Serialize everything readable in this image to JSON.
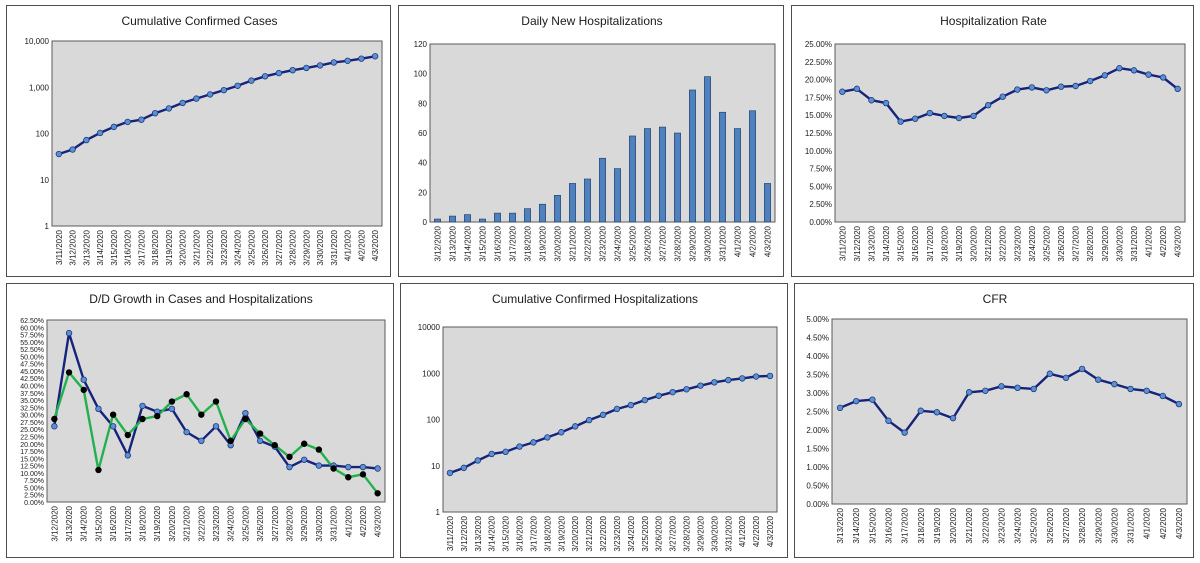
{
  "chart_data": [
    {
      "id": "cases",
      "type": "line",
      "title": "Cumulative Confirmed Cases",
      "yscale": "log",
      "ylim": [
        1,
        10000
      ],
      "yticks": [
        1,
        10,
        100,
        1000,
        10000
      ],
      "ytick_labels": [
        "1",
        "10",
        "100",
        "1,000",
        "10,000"
      ],
      "categories": [
        "3/11/2020",
        "3/12/2020",
        "3/13/2020",
        "3/14/2020",
        "3/15/2020",
        "3/16/2020",
        "3/17/2020",
        "3/18/2020",
        "3/19/2020",
        "3/20/2020",
        "3/21/2020",
        "3/22/2020",
        "3/23/2020",
        "3/24/2020",
        "3/25/2020",
        "3/26/2020",
        "3/27/2020",
        "3/28/2020",
        "3/29/2020",
        "3/30/2020",
        "3/31/2020",
        "4/1/2020",
        "4/2/2020",
        "4/3/2020"
      ],
      "series": [
        {
          "values": [
            36,
            45,
            72,
            103,
            139,
            178,
            199,
            275,
            349,
            458,
            568,
            700,
            866,
            1076,
            1391,
            1728,
            2024,
            2338,
            2615,
            2968,
            3441,
            3738,
            4149,
            4669
          ],
          "color": "#16237a",
          "marker": "#5b8fd6"
        }
      ],
      "grid": false
    },
    {
      "id": "hosp",
      "type": "bar",
      "title": "Daily New Hospitalizations",
      "ylim": [
        0,
        120
      ],
      "yticks": [
        0,
        20,
        40,
        60,
        80,
        100,
        120
      ],
      "categories": [
        "3/12/2020",
        "3/13/2020",
        "3/14/2020",
        "3/15/2020",
        "3/16/2020",
        "3/17/2020",
        "3/18/2020",
        "3/19/2020",
        "3/20/2020",
        "3/21/2020",
        "3/22/2020",
        "3/23/2020",
        "3/24/2020",
        "3/25/2020",
        "3/26/2020",
        "3/27/2020",
        "3/28/2020",
        "3/29/2020",
        "3/30/2020",
        "3/31/2020",
        "4/1/2020",
        "4/2/2020",
        "4/3/2020"
      ],
      "values": [
        2,
        4,
        5,
        2,
        6,
        6,
        9,
        12,
        18,
        26,
        29,
        43,
        36,
        58,
        63,
        64,
        60,
        89,
        98,
        74,
        63,
        75,
        26
      ],
      "color": "#4f81bd",
      "grid": false
    },
    {
      "id": "rate",
      "type": "line",
      "title": "Hospitalization Rate",
      "ylim": [
        0,
        25
      ],
      "yticks": [
        0,
        2.5,
        5,
        7.5,
        10,
        12.5,
        15,
        17.5,
        20,
        22.5,
        25
      ],
      "ytick_labels": [
        "0.00%",
        "2.50%",
        "5.00%",
        "7.50%",
        "10.00%",
        "12.50%",
        "15.00%",
        "17.50%",
        "20.00%",
        "22.50%",
        "25.00%"
      ],
      "categories": [
        "3/11/2020",
        "3/12/2020",
        "3/13/2020",
        "3/14/2020",
        "3/15/2020",
        "3/16/2020",
        "3/17/2020",
        "3/18/2020",
        "3/19/2020",
        "3/20/2020",
        "3/21/2020",
        "3/22/2020",
        "3/23/2020",
        "3/24/2020",
        "3/25/2020",
        "3/26/2020",
        "3/27/2020",
        "3/28/2020",
        "3/29/2020",
        "3/30/2020",
        "3/31/2020",
        "4/1/2020",
        "4/2/2020",
        "4/3/2020"
      ],
      "series": [
        {
          "values": [
            18.3,
            18.7,
            17.1,
            16.7,
            14.1,
            14.5,
            15.3,
            14.9,
            14.6,
            14.9,
            16.4,
            17.6,
            18.6,
            18.9,
            18.5,
            19.0,
            19.1,
            19.8,
            20.6,
            21.6,
            21.3,
            20.7,
            20.3,
            18.7
          ],
          "color": "#16237a",
          "marker": "#5b8fd6"
        }
      ],
      "grid": false
    },
    {
      "id": "growth",
      "type": "line",
      "title": "D/D Growth in Cases and Hospitalizations",
      "ylim": [
        0,
        62.5
      ],
      "yticks": [
        0,
        2.5,
        5,
        7.5,
        10,
        12.5,
        15,
        17.5,
        20,
        22.5,
        25,
        27.5,
        30,
        32.5,
        35,
        37.5,
        40,
        42.5,
        45,
        47.5,
        50,
        52.5,
        55,
        57.5,
        60,
        62.5
      ],
      "ytick_labels": [
        "0.00%",
        "2.50%",
        "5.00%",
        "7.50%",
        "10.00%",
        "12.50%",
        "15.00%",
        "17.50%",
        "20.00%",
        "22.50%",
        "25.00%",
        "27.50%",
        "30.00%",
        "32.50%",
        "35.00%",
        "37.50%",
        "40.00%",
        "42.50%",
        "45.00%",
        "47.50%",
        "50.00%",
        "52.50%",
        "55.00%",
        "57.50%",
        "60.00%",
        "62.50%"
      ],
      "categories": [
        "3/12/2020",
        "3/13/2020",
        "3/14/2020",
        "3/15/2020",
        "3/16/2020",
        "3/17/2020",
        "3/18/2020",
        "3/19/2020",
        "3/20/2020",
        "3/21/2020",
        "3/22/2020",
        "3/23/2020",
        "3/24/2020",
        "3/25/2020",
        "3/26/2020",
        "3/27/2020",
        "3/28/2020",
        "3/29/2020",
        "3/30/2020",
        "3/31/2020",
        "4/1/2020",
        "4/2/2020",
        "4/3/2020"
      ],
      "series": [
        {
          "values": [
            26,
            58,
            42,
            32,
            26,
            16,
            33,
            31,
            32,
            24,
            21,
            26,
            19.5,
            30.5,
            21,
            19,
            12,
            14.5,
            12.5,
            12.5,
            12,
            12,
            11.5
          ],
          "color": "#16237a",
          "marker": "#5b8fd6"
        },
        {
          "values": [
            28.5,
            44.5,
            38.5,
            11,
            30,
            23,
            28.5,
            29.5,
            34.5,
            37,
            30,
            34.5,
            21,
            28.5,
            23.5,
            19.5,
            15.5,
            20,
            18,
            11.5,
            8.5,
            9.5,
            3
          ],
          "color": "#22b14c",
          "marker": "#000000"
        }
      ],
      "grid": false
    },
    {
      "id": "cumhosp",
      "type": "line",
      "title": "Cumulative Confirmed Hospitalizations",
      "yscale": "log",
      "ylim": [
        1,
        10000
      ],
      "yticks": [
        1,
        10,
        100,
        1000,
        10000
      ],
      "ytick_labels": [
        "1",
        "10",
        "100",
        "1000",
        "10000"
      ],
      "categories": [
        "3/11/2020",
        "3/12/2020",
        "3/13/2020",
        "3/14/2020",
        "3/15/2020",
        "3/16/2020",
        "3/17/2020",
        "3/18/2020",
        "3/19/2020",
        "3/20/2020",
        "3/21/2020",
        "3/22/2020",
        "3/23/2020",
        "3/24/2020",
        "3/25/2020",
        "3/26/2020",
        "3/27/2020",
        "3/28/2020",
        "3/29/2020",
        "3/30/2020",
        "3/31/2020",
        "4/1/2020",
        "4/2/2020",
        "4/3/2020"
      ],
      "series": [
        {
          "values": [
            7,
            9,
            13,
            18,
            20,
            26,
            32,
            41,
            53,
            71,
            97,
            126,
            169,
            205,
            263,
            326,
            390,
            450,
            539,
            637,
            711,
            774,
            849,
            875
          ],
          "color": "#16237a",
          "marker": "#5b8fd6"
        }
      ],
      "grid": false
    },
    {
      "id": "cfr",
      "type": "line",
      "title": "CFR",
      "ylim": [
        0,
        5
      ],
      "yticks": [
        0,
        0.5,
        1,
        1.5,
        2,
        2.5,
        3,
        3.5,
        4,
        4.5,
        5
      ],
      "ytick_labels": [
        "0.00%",
        "0.50%",
        "1.00%",
        "1.50%",
        "2.00%",
        "2.50%",
        "3.00%",
        "3.50%",
        "4.00%",
        "4.50%",
        "5.00%"
      ],
      "categories": [
        "3/13/2020",
        "3/14/2020",
        "3/15/2020",
        "3/16/2020",
        "3/17/2020",
        "3/18/2020",
        "3/19/2020",
        "3/20/2020",
        "3/21/2020",
        "3/22/2020",
        "3/23/2020",
        "3/24/2020",
        "3/25/2020",
        "3/26/2020",
        "3/27/2020",
        "3/28/2020",
        "3/29/2020",
        "3/30/2020",
        "3/31/2020",
        "4/1/2020",
        "4/2/2020",
        "4/3/2020"
      ],
      "series": [
        {
          "values": [
            2.6,
            2.78,
            2.82,
            2.25,
            1.93,
            2.52,
            2.48,
            2.32,
            3.02,
            3.06,
            3.18,
            3.14,
            3.11,
            3.52,
            3.41,
            3.65,
            3.36,
            3.24,
            3.11,
            3.06,
            2.92,
            2.7
          ],
          "color": "#16237a",
          "marker": "#5b8fd6"
        }
      ],
      "grid": false
    }
  ]
}
